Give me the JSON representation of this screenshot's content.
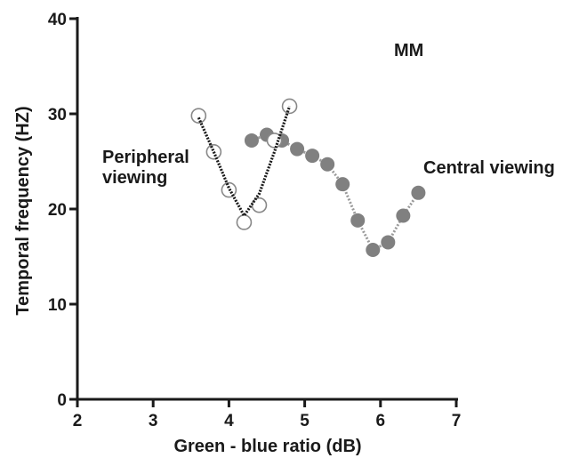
{
  "chart_data": {
    "type": "line",
    "xlabel": "Green - blue ratio (dB)",
    "ylabel": "Temporal frequency (HZ)",
    "xlim": [
      2,
      7
    ],
    "ylim": [
      0,
      40
    ],
    "xticks": [
      2,
      3,
      4,
      5,
      6,
      7
    ],
    "yticks": [
      0,
      10,
      20,
      30,
      40
    ],
    "annotations": {
      "subject": "MM",
      "peripheral_line1": "Peripheral",
      "peripheral_line2": "viewing",
      "central": "Central viewing"
    },
    "series": [
      {
        "marker": "open-circle",
        "marker_color": "#888888",
        "line_color": "#1a1a1a",
        "points": [
          {
            "x": 3.6,
            "y": 29.8
          },
          {
            "x": 3.8,
            "y": 26.0
          },
          {
            "x": 4.0,
            "y": 22.0
          },
          {
            "x": 4.2,
            "y": 18.6
          },
          {
            "x": 4.4,
            "y": 20.4
          },
          {
            "x": 4.6,
            "y": 27.2
          },
          {
            "x": 4.8,
            "y": 30.8
          }
        ],
        "fit_curve": [
          {
            "x": 3.6,
            "y": 29.6
          },
          {
            "x": 3.8,
            "y": 26.0
          },
          {
            "x": 4.0,
            "y": 22.2
          },
          {
            "x": 4.2,
            "y": 19.3
          },
          {
            "x": 4.4,
            "y": 21.6
          },
          {
            "x": 4.6,
            "y": 26.0
          },
          {
            "x": 4.8,
            "y": 30.8
          }
        ]
      },
      {
        "marker": "filled-circle",
        "marker_color": "#808080",
        "line_color": "#9a9a9a",
        "points": [
          {
            "x": 4.3,
            "y": 27.2
          },
          {
            "x": 4.5,
            "y": 27.8
          },
          {
            "x": 4.7,
            "y": 27.2
          },
          {
            "x": 4.9,
            "y": 26.3
          },
          {
            "x": 5.1,
            "y": 25.6
          },
          {
            "x": 5.3,
            "y": 24.7
          },
          {
            "x": 5.5,
            "y": 22.6
          },
          {
            "x": 5.7,
            "y": 18.8
          },
          {
            "x": 5.9,
            "y": 15.7
          },
          {
            "x": 6.1,
            "y": 16.5
          },
          {
            "x": 6.3,
            "y": 19.3
          },
          {
            "x": 6.5,
            "y": 21.7
          }
        ]
      }
    ]
  }
}
